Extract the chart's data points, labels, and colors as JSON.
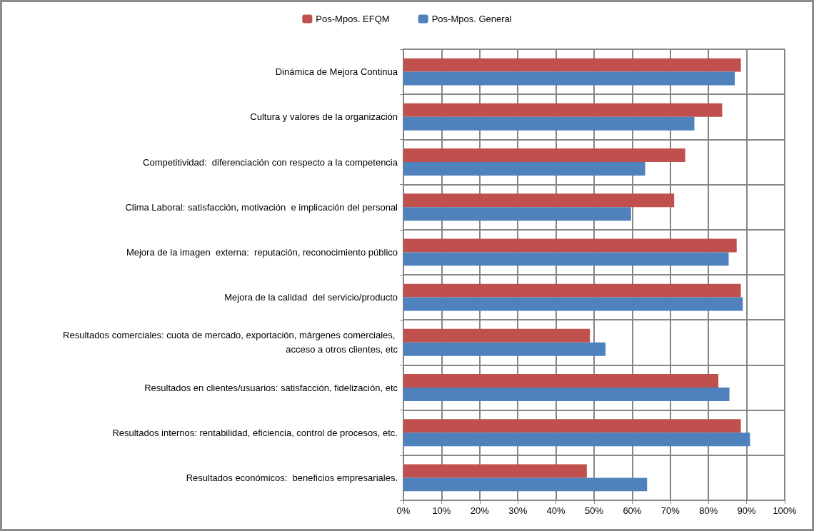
{
  "chart_data": {
    "type": "bar",
    "orientation": "horizontal",
    "categories": [
      "Dinámica de Mejora Continua",
      "Cultura y valores de la organización",
      "Competitividad:  diferenciación con respecto a la competencia",
      "Clima Laboral: satisfacción, motivación  e implicación del personal",
      "Mejora de la imagen  externa:  reputación, reconocimiento público",
      "Mejora de la calidad  del servicio/producto",
      "Resultados comerciales: cuota de mercado, exportación, márgenes comerciales, acceso a otros clientes, etc",
      "Resultados en clientes/usuarios: satisfacción, fidelización, etc",
      "Resultados internos: rentabilidad, eficiencia, control de procesos, etc.",
      "Resultados económicos:  beneficios empresariales."
    ],
    "series": [
      {
        "name": "Pos-Mpos. EFQM",
        "color": "#c0504d",
        "values": [
          88.5,
          83.6,
          73.9,
          71.0,
          87.4,
          88.5,
          48.9,
          82.6,
          88.5,
          48.1
        ]
      },
      {
        "name": "Pos-Mpos. General",
        "color": "#4f81bd",
        "values": [
          86.9,
          76.3,
          63.4,
          59.7,
          85.3,
          89.0,
          53.0,
          85.5,
          90.9,
          63.9
        ]
      }
    ],
    "xlim": [
      0,
      100
    ],
    "xticks": [
      {
        "value": 0,
        "label": "0%"
      },
      {
        "value": 10,
        "label": "10%"
      },
      {
        "value": 20,
        "label": "20%"
      },
      {
        "value": 30,
        "label": "30%"
      },
      {
        "value": 40,
        "label": "40%"
      },
      {
        "value": 50,
        "label": "50%"
      },
      {
        "value": 60,
        "label": "60%"
      },
      {
        "value": 70,
        "label": "70%"
      },
      {
        "value": 80,
        "label": "80%"
      },
      {
        "value": 90,
        "label": "90%"
      },
      {
        "value": 100,
        "label": "100%"
      }
    ],
    "grid": true,
    "legend": "top"
  }
}
